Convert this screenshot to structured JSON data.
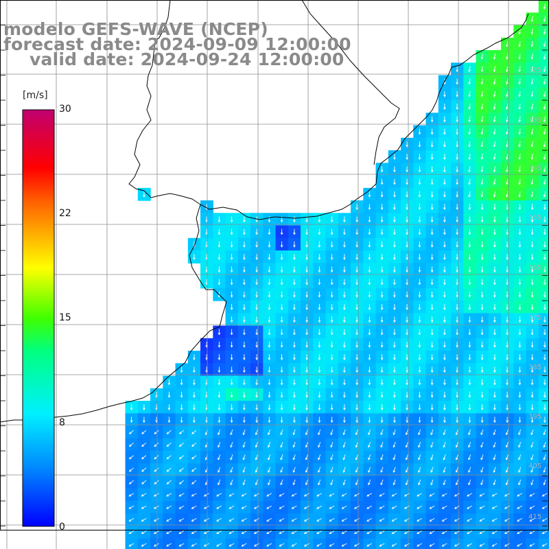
{
  "title": {
    "line1": "modelo GEFS-WAVE (NCEP)",
    "line2": "forecast date: 2024-09-09 12:00:00",
    "line3": "valid date: 2024-09-24 12:00:00"
  },
  "colorbar": {
    "unit": "[m/s]",
    "ticks": [
      "30",
      "22",
      "15",
      "8",
      "0"
    ],
    "colors": [
      "#0000ff",
      "#0088ff",
      "#00e8ff",
      "#00ff40",
      "#ffff00",
      "#ff8800",
      "#ff0000",
      "#c00070"
    ]
  },
  "map": {
    "land_color": "#ffffff",
    "grid_color": "#9a9a9a",
    "arrow_color": "#ffffff",
    "lat_labels": [
      "325",
      "335",
      "345",
      "355",
      "365",
      "375",
      "385",
      "395",
      "405",
      "415"
    ]
  }
}
